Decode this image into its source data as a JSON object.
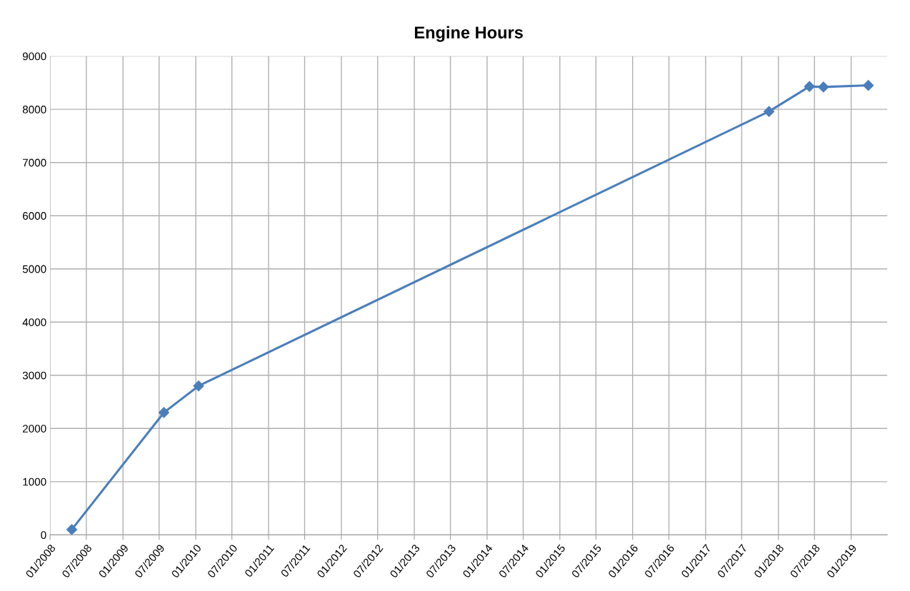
{
  "chart_data": {
    "type": "line",
    "title": "Engine Hours",
    "x": [
      "2008-04-19",
      "2009-07-25",
      "2010-01-15",
      "2017-11-15",
      "2018-06-06",
      "2018-08-15",
      "2019-03-28"
    ],
    "series": [
      {
        "color": "#4a7ebb",
        "values": [
          100,
          2300,
          2800,
          7960,
          8430,
          8420,
          8450
        ]
      }
    ],
    "xlim": [
      "2008-01-01",
      "2019-07-01"
    ],
    "xticks": [
      {
        "value": "2008-01-01",
        "label": "01/2008"
      },
      {
        "value": "2008-07-01",
        "label": "07/2008"
      },
      {
        "value": "2009-01-01",
        "label": "01/2009"
      },
      {
        "value": "2009-07-01",
        "label": "07/2009"
      },
      {
        "value": "2010-01-01",
        "label": "01/2010"
      },
      {
        "value": "2010-07-01",
        "label": "07/2010"
      },
      {
        "value": "2011-01-01",
        "label": "01/2011"
      },
      {
        "value": "2011-07-01",
        "label": "07/2011"
      },
      {
        "value": "2012-01-01",
        "label": "01/2012"
      },
      {
        "value": "2012-07-01",
        "label": "07/2012"
      },
      {
        "value": "2013-01-01",
        "label": "01/2013"
      },
      {
        "value": "2013-07-01",
        "label": "07/2013"
      },
      {
        "value": "2014-01-01",
        "label": "01/2014"
      },
      {
        "value": "2014-07-01",
        "label": "07/2014"
      },
      {
        "value": "2015-01-01",
        "label": "01/2015"
      },
      {
        "value": "2015-07-01",
        "label": "07/2015"
      },
      {
        "value": "2016-01-01",
        "label": "01/2016"
      },
      {
        "value": "2016-07-01",
        "label": "07/2016"
      },
      {
        "value": "2017-01-01",
        "label": "01/2017"
      },
      {
        "value": "2017-07-01",
        "label": "07/2017"
      },
      {
        "value": "2018-01-01",
        "label": "01/2018"
      },
      {
        "value": "2018-07-01",
        "label": "07/2018"
      },
      {
        "value": "2019-01-01",
        "label": "01/2019"
      }
    ],
    "ylim": [
      0,
      9000
    ],
    "yticks": [
      0,
      1000,
      2000,
      3000,
      4000,
      5000,
      6000,
      7000,
      8000,
      9000
    ],
    "grid": true,
    "marker": "diamond",
    "line_style": "solid"
  }
}
